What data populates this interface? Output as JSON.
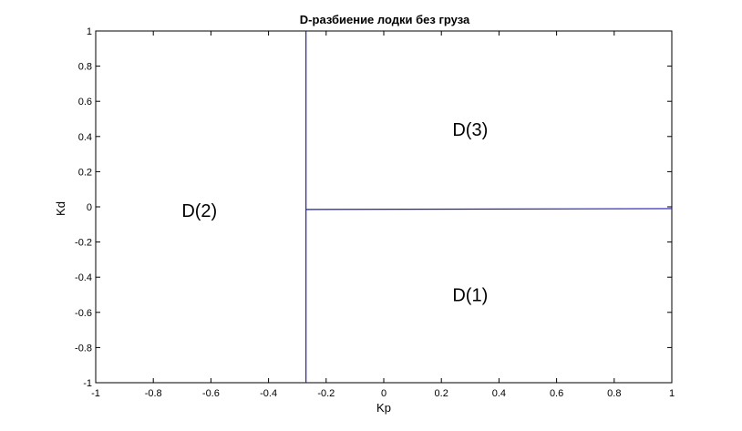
{
  "chart_data": {
    "type": "line",
    "title": "D-разбиение лодки без груза",
    "xlabel": "Kp",
    "ylabel": "Kd",
    "xlim": [
      -1,
      1
    ],
    "ylim": [
      -1,
      1
    ],
    "xticks": [
      -1,
      -0.8,
      -0.6,
      -0.4,
      -0.2,
      0,
      0.2,
      0.4,
      0.6,
      0.8,
      1
    ],
    "yticks": [
      -1,
      -0.8,
      -0.6,
      -0.4,
      -0.2,
      0,
      0.2,
      0.4,
      0.6,
      0.8,
      1
    ],
    "xtick_labels": [
      "-1",
      "-0.8",
      "-0.6",
      "-0.4",
      "-0.2",
      "0",
      "0.2",
      "0.4",
      "0.6",
      "0.8",
      "1"
    ],
    "ytick_labels": [
      "-1",
      "-0.8",
      "-0.6",
      "-0.4",
      "-0.2",
      "0",
      "0.2",
      "0.4",
      "0.6",
      "0.8",
      "1"
    ],
    "series": [
      {
        "color": "#1f1fb4",
        "x": [
          -0.27,
          -0.27
        ],
        "y": [
          -1,
          1
        ]
      },
      {
        "color": "#1f1fb4",
        "x": [
          -0.27,
          1
        ],
        "y": [
          -0.015,
          -0.01
        ]
      }
    ],
    "annotations": [
      {
        "text": "D(3)",
        "x": 0.3,
        "y": 0.44
      },
      {
        "text": "D(2)",
        "x": -0.64,
        "y": -0.02
      },
      {
        "text": "D(1)",
        "x": 0.3,
        "y": -0.5
      }
    ],
    "grid": false
  }
}
